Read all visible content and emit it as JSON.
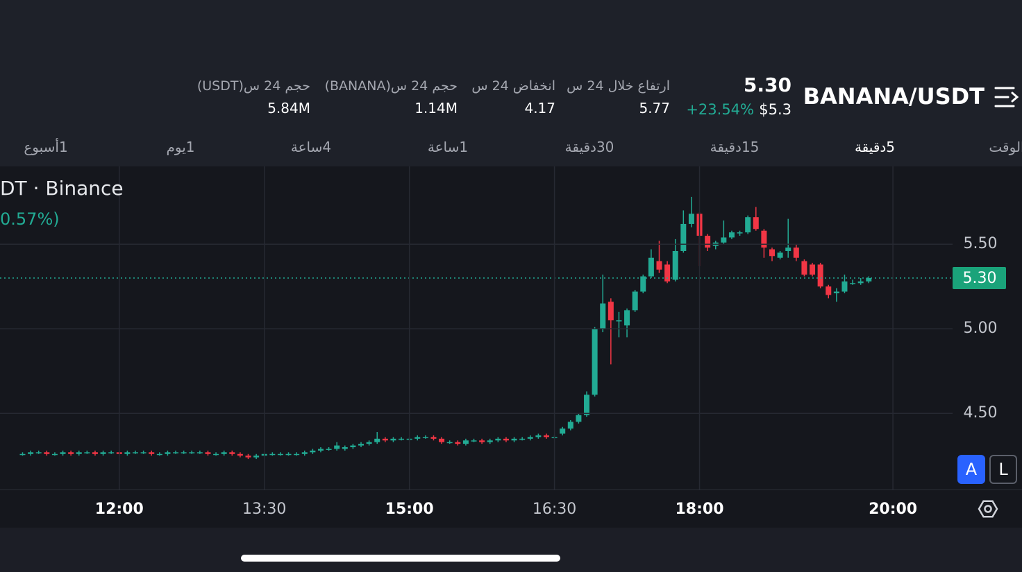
{
  "header": {
    "pair": "BANANA/USDT",
    "last_price": "5.30",
    "usd_price": "$5.3",
    "change": "+23.54%",
    "stats": [
      {
        "label": "ارتفاع خلال 24 س",
        "value": "5.77"
      },
      {
        "label": "انخفاض 24 س",
        "value": "4.17"
      },
      {
        "label": "حجم 24 س(BANANA)",
        "value": "1.14M"
      },
      {
        "label": "حجم 24 س(USDT)",
        "value": "5.84M"
      }
    ]
  },
  "tabs": [
    "الوقت",
    "5دقيقة",
    "15دقيقة",
    "30دقيقة",
    "1ساعة",
    "4ساعة",
    "1يوم",
    "1أسبوع"
  ],
  "buttons": [
    "A",
    "L"
  ],
  "chart_data": {
    "type": "candlestick",
    "title": "DT · Binance",
    "subtitle": "0.57%)",
    "up_color": "#22ab94",
    "down_color": "#f23645",
    "xlim": [
      "10:46",
      "20:37"
    ],
    "xticks": [
      "12:00",
      "13:30",
      "15:00",
      "16:30",
      "18:00",
      "20:00"
    ],
    "ylim": [
      4.05,
      5.96
    ],
    "yticks": [
      {
        "value": 4.5,
        "label": "4.50"
      },
      {
        "value": 5,
        "label": "5.00"
      },
      {
        "value": 5.5,
        "label": "5.50"
      }
    ],
    "grid": true,
    "last": {
      "value": 5.3,
      "label": "5.30"
    },
    "x": [
      "11:00",
      "11:05",
      "11:10",
      "11:15",
      "11:20",
      "11:25",
      "11:30",
      "11:35",
      "11:40",
      "11:45",
      "11:50",
      "11:55",
      "12:00",
      "12:05",
      "12:10",
      "12:15",
      "12:20",
      "12:25",
      "12:30",
      "12:35",
      "12:40",
      "12:45",
      "12:50",
      "12:55",
      "13:00",
      "13:05",
      "13:10",
      "13:15",
      "13:20",
      "13:25",
      "13:30",
      "13:35",
      "13:40",
      "13:45",
      "13:50",
      "13:55",
      "14:00",
      "14:05",
      "14:10",
      "14:15",
      "14:20",
      "14:25",
      "14:30",
      "14:35",
      "14:40",
      "14:45",
      "14:50",
      "14:55",
      "15:00",
      "15:05",
      "15:10",
      "15:15",
      "15:20",
      "15:25",
      "15:30",
      "15:35",
      "15:40",
      "15:45",
      "15:50",
      "15:55",
      "16:00",
      "16:05",
      "16:10",
      "16:15",
      "16:20",
      "16:25",
      "16:30",
      "16:35",
      "16:40",
      "16:45",
      "16:50",
      "16:55",
      "17:00",
      "17:05",
      "17:10",
      "17:15",
      "17:20",
      "17:25",
      "17:30",
      "17:35",
      "17:40",
      "17:45",
      "17:50",
      "17:55",
      "18:00",
      "18:05",
      "18:10",
      "18:15",
      "18:20",
      "18:25",
      "18:30",
      "18:35",
      "18:40",
      "18:45",
      "18:50",
      "18:55",
      "19:00",
      "19:05",
      "19:10",
      "19:15",
      "19:20",
      "19:25",
      "19:30",
      "19:35",
      "19:40",
      "19:45"
    ],
    "open": [
      4.26,
      4.26,
      4.27,
      4.27,
      4.26,
      4.26,
      4.27,
      4.26,
      4.27,
      4.27,
      4.26,
      4.27,
      4.27,
      4.26,
      4.27,
      4.27,
      4.27,
      4.26,
      4.26,
      4.27,
      4.27,
      4.27,
      4.27,
      4.27,
      4.26,
      4.26,
      4.27,
      4.26,
      4.25,
      4.24,
      4.25,
      4.26,
      4.26,
      4.26,
      4.26,
      4.26,
      4.27,
      4.28,
      4.29,
      4.29,
      4.29,
      4.3,
      4.31,
      4.32,
      4.33,
      4.35,
      4.34,
      4.35,
      4.35,
      4.35,
      4.36,
      4.36,
      4.35,
      4.33,
      4.33,
      4.32,
      4.34,
      4.34,
      4.33,
      4.34,
      4.35,
      4.34,
      4.35,
      4.35,
      4.36,
      4.37,
      4.36,
      4.38,
      4.41,
      4.45,
      4.49,
      4.61,
      5.0,
      5.16,
      5.05,
      5.02,
      5.11,
      5.22,
      5.31,
      5.4,
      5.38,
      5.29,
      5.46,
      5.62,
      5.68,
      5.55,
      5.49,
      5.51,
      5.54,
      5.57,
      5.57,
      5.66,
      5.58,
      5.47,
      5.42,
      5.46,
      5.48,
      5.4,
      5.38,
      5.38,
      5.25,
      5.21,
      5.22,
      5.27,
      5.27,
      5.28
    ],
    "high": [
      4.27,
      4.28,
      4.28,
      4.28,
      4.27,
      4.28,
      4.28,
      4.28,
      4.28,
      4.28,
      4.28,
      4.28,
      4.28,
      4.28,
      4.28,
      4.28,
      4.28,
      4.27,
      4.28,
      4.28,
      4.28,
      4.28,
      4.28,
      4.28,
      4.27,
      4.28,
      4.28,
      4.27,
      4.26,
      4.26,
      4.27,
      4.27,
      4.27,
      4.27,
      4.27,
      4.28,
      4.29,
      4.3,
      4.3,
      4.33,
      4.31,
      4.32,
      4.33,
      4.34,
      4.39,
      4.36,
      4.36,
      4.36,
      4.36,
      4.37,
      4.37,
      4.37,
      4.36,
      4.34,
      4.34,
      4.35,
      4.35,
      4.35,
      4.35,
      4.36,
      4.36,
      4.36,
      4.36,
      4.37,
      4.38,
      4.38,
      4.37,
      4.42,
      4.46,
      4.5,
      4.63,
      5.01,
      5.32,
      5.18,
      5.1,
      5.12,
      5.23,
      5.32,
      5.47,
      5.52,
      5.4,
      5.53,
      5.7,
      5.78,
      5.69,
      5.56,
      5.52,
      5.64,
      5.58,
      5.58,
      5.67,
      5.72,
      5.59,
      5.48,
      5.46,
      5.65,
      5.5,
      5.41,
      5.39,
      5.39,
      5.26,
      5.24,
      5.32,
      5.29,
      5.3,
      5.31
    ],
    "low": [
      4.25,
      4.25,
      4.26,
      4.25,
      4.25,
      4.25,
      4.25,
      4.25,
      4.26,
      4.25,
      4.25,
      4.26,
      4.25,
      4.25,
      4.26,
      4.26,
      4.25,
      4.25,
      4.25,
      4.26,
      4.26,
      4.26,
      4.26,
      4.25,
      4.25,
      4.25,
      4.25,
      4.24,
      4.23,
      4.23,
      4.24,
      4.25,
      4.25,
      4.25,
      4.25,
      4.25,
      4.26,
      4.27,
      4.28,
      4.28,
      4.28,
      4.29,
      4.3,
      4.31,
      4.32,
      4.33,
      4.33,
      4.34,
      4.34,
      4.34,
      4.35,
      4.34,
      4.32,
      4.32,
      4.31,
      4.31,
      4.33,
      4.32,
      4.32,
      4.33,
      4.33,
      4.33,
      4.34,
      4.34,
      4.35,
      4.35,
      4.35,
      4.37,
      4.4,
      4.44,
      4.48,
      4.6,
      4.98,
      4.79,
      4.95,
      4.95,
      5.1,
      5.21,
      5.3,
      5.33,
      5.27,
      5.28,
      5.45,
      5.6,
      5.37,
      5.46,
      5.47,
      5.5,
      5.53,
      5.55,
      5.56,
      5.58,
      5.42,
      5.4,
      5.41,
      5.42,
      5.4,
      5.31,
      5.31,
      5.24,
      5.18,
      5.16,
      5.21,
      5.26,
      5.26,
      5.27
    ],
    "close": [
      4.26,
      4.27,
      4.27,
      4.26,
      4.26,
      4.27,
      4.26,
      4.27,
      4.27,
      4.26,
      4.27,
      4.27,
      4.26,
      4.27,
      4.27,
      4.27,
      4.26,
      4.26,
      4.27,
      4.27,
      4.27,
      4.27,
      4.27,
      4.26,
      4.26,
      4.27,
      4.26,
      4.25,
      4.24,
      4.25,
      4.26,
      4.26,
      4.26,
      4.26,
      4.26,
      4.27,
      4.28,
      4.29,
      4.29,
      4.31,
      4.3,
      4.31,
      4.32,
      4.33,
      4.35,
      4.34,
      4.35,
      4.35,
      4.35,
      4.36,
      4.36,
      4.35,
      4.33,
      4.33,
      4.32,
      4.34,
      4.34,
      4.33,
      4.34,
      4.35,
      4.34,
      4.35,
      4.35,
      4.36,
      4.37,
      4.36,
      4.36,
      4.41,
      4.45,
      4.49,
      4.61,
      5.0,
      5.15,
      5.05,
      5.05,
      5.11,
      5.22,
      5.31,
      5.42,
      5.35,
      5.28,
      5.46,
      5.62,
      5.68,
      5.55,
      5.48,
      5.51,
      5.54,
      5.57,
      5.57,
      5.66,
      5.59,
      5.48,
      5.43,
      5.45,
      5.48,
      5.42,
      5.32,
      5.32,
      5.25,
      5.2,
      5.22,
      5.28,
      5.27,
      5.28,
      5.3
    ]
  }
}
